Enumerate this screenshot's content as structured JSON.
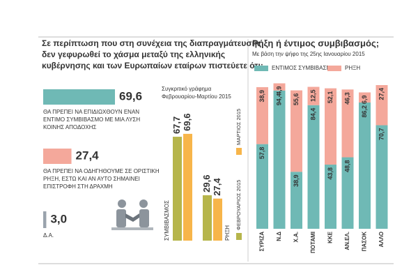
{
  "chart_data": [
    {
      "type": "barh",
      "title": [
        "Σε περίπτωση που στη συνέχεια της διαπραγμάτευσης",
        "δεν γεφυρωθεί το χάσμα μεταξύ της ελληνικής",
        "κυβέρνησης και των Ευρωπαίων εταίρων πιστεύετε ότι:"
      ],
      "categories": [
        [
          "ΘΑ ΠΡΕΠΕΙ ΝΑ ΕΠΙΔΙΩΧΘΟΥΝ ΕΝΑΝ",
          "ΕΝΤΙΜΟ ΣΥΜΒΙΒΑΣΜΟ ΜΕ ΜΙΑ ΛΥΣΗ",
          "ΚΟΙΝΗΣ ΑΠΟΔΟΧΗΣ"
        ],
        [
          "ΘΑ ΠΡΕΠΕΙ ΝΑ ΟΔΗΓΗΘΟΥΜΕ ΣΕ ΟΡΙΣΤΙΚΗ",
          "ΡΗΞΗ, ΕΣΤΩ ΚΑΙ ΑΝ ΑΥΤΟ ΣΗΜΑΙΝΕΙ",
          "ΕΠΙΣΤΡΟΦΗ ΣΤΗ ΔΡΑΧΜΗ"
        ],
        [
          "Δ.Α."
        ]
      ],
      "values": [
        69.6,
        27.4,
        3.0
      ],
      "value_labels": [
        "69,6",
        "27,4",
        "3,0"
      ],
      "colors": [
        "#6fb9b5",
        "#f4a89b",
        "#9aa3ad"
      ],
      "xlim": [
        0,
        70
      ]
    },
    {
      "type": "bar",
      "title": [
        "Συγκριτικό γράφημα",
        "Φεβρουαρίου-Μαρτίου 2015"
      ],
      "categories": [
        "ΣΥΜΒΙΒΑΣΜΟΣ",
        "ΡΗΞΗ"
      ],
      "series": [
        {
          "name": "ΦΕΒΡΟΥΑΡΙΟΣ 2015",
          "color": "#b6b54b",
          "values": [
            67.7,
            29.6
          ],
          "value_labels": [
            "67,7",
            "29,6"
          ]
        },
        {
          "name": "ΜΑΡΤΙΟΣ 2015",
          "color": "#f7b54a",
          "values": [
            69.6,
            27.4
          ],
          "value_labels": [
            "69,6",
            "27,4"
          ]
        }
      ],
      "ylim": [
        0,
        75
      ]
    },
    {
      "type": "stacked_bar",
      "title": "Ρήξη ή έντιμος συμβιβασμός;",
      "subtitle": "Με βάση την ψήφο της 25ης Ιανουαρίου 2015",
      "categories": [
        "ΣΥΡΙΖΑ",
        "Ν.Δ",
        "Χ.Α.",
        "ΠΟΤΑΜΙ",
        "ΚΚΕ",
        "ΑΝ.ΕΛ.",
        "ΠΑΣΟΚ",
        "ΑΛΛΟ"
      ],
      "series": [
        {
          "name": "ΕΝΤΙΜΟΣ ΣΥΜΒΙΒΑΣΜΟΣ",
          "color": "#6fb9b5",
          "values": [
            57.8,
            94.4,
            38.9,
            84.4,
            43.8,
            48.8,
            86.2,
            70.7
          ],
          "value_labels": [
            "57,8",
            "94,4",
            "38,9",
            "84,4",
            "43,8",
            "48,8",
            "86,2",
            "70,7"
          ]
        },
        {
          "name": "ΡΗΞΗ",
          "color": "#f4a89b",
          "values": [
            38.9,
            4.9,
            55.6,
            12.5,
            52.1,
            46.3,
            6.9,
            27.4
          ],
          "value_labels": [
            "38,9",
            "4,9",
            "55,6",
            "12,5",
            "52,1",
            "46,3",
            "6,9",
            "27,4"
          ]
        }
      ],
      "ylim": [
        0,
        100
      ]
    }
  ]
}
